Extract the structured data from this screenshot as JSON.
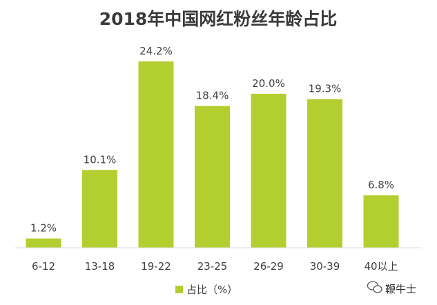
{
  "chart_data": {
    "type": "bar",
    "title": "2018年中国网红粉丝年龄占比",
    "categories": [
      "6-12",
      "13-18",
      "19-22",
      "23-25",
      "26-29",
      "30-39",
      "40以上"
    ],
    "series": [
      {
        "name": "占比（%）",
        "values": [
          1.2,
          10.1,
          24.2,
          18.4,
          20.0,
          19.3,
          6.8
        ],
        "labels": [
          "1.2%",
          "10.1%",
          "24.2%",
          "18.4%",
          "20.0%",
          "19.3%",
          "6.8%"
        ],
        "color": "#b3cf2f"
      }
    ],
    "ylim": [
      0,
      24.2
    ],
    "grid": false,
    "legend_position": "bottom"
  },
  "watermark": {
    "text": "鞭牛士"
  }
}
